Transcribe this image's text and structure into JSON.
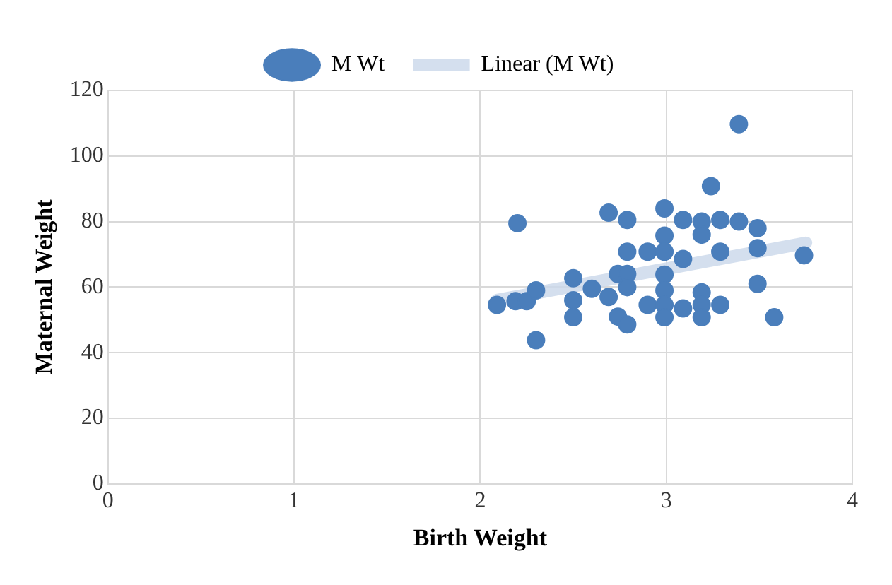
{
  "chart_data": {
    "type": "scatter",
    "xlabel": "Birth Weight",
    "ylabel": "Maternal Weight",
    "xlim": [
      0,
      4
    ],
    "xticks": [
      0,
      1,
      2,
      3,
      4
    ],
    "ylim": [
      0,
      120
    ],
    "yticks": [
      0,
      20,
      40,
      60,
      80,
      100,
      120
    ],
    "grid": true,
    "legend": "top",
    "series": [
      {
        "name": "M Wt",
        "color": "#4a7ebb",
        "marker": "circle",
        "x": [
          2.09,
          2.19,
          2.25,
          2.3,
          2.2,
          2.3,
          2.5,
          2.5,
          2.5,
          2.6,
          2.69,
          2.69,
          2.74,
          2.74,
          2.79,
          2.79,
          2.79,
          2.79,
          2.79,
          2.9,
          2.9,
          2.99,
          2.99,
          2.99,
          2.99,
          2.99,
          2.99,
          2.99,
          3.09,
          3.09,
          3.09,
          3.19,
          3.19,
          3.19,
          3.19,
          3.19,
          3.24,
          3.29,
          3.29,
          3.29,
          3.39,
          3.39,
          3.49,
          3.49,
          3.49,
          3.58,
          3.74
        ],
        "values": [
          54.6,
          55.7,
          55.7,
          59,
          79.5,
          43.8,
          62.7,
          56,
          50.8,
          59.5,
          82.7,
          57,
          64,
          51,
          80.5,
          70.8,
          64,
          60,
          48.6,
          70.8,
          54.6,
          84,
          75.7,
          70.8,
          63.8,
          59,
          54.6,
          50.8,
          80.5,
          68.6,
          53.5,
          80,
          76,
          58.4,
          54.6,
          50.8,
          90.8,
          80.5,
          70.8,
          54.6,
          109.7,
          80,
          78,
          71.9,
          61,
          50.8,
          69.7
        ]
      },
      {
        "name": "Linear (M Wt)",
        "type": "line",
        "color": "#c9d7ea",
        "marker": "none",
        "x": [
          2.09,
          3.75
        ],
        "values": [
          56,
          73.5
        ]
      }
    ]
  }
}
